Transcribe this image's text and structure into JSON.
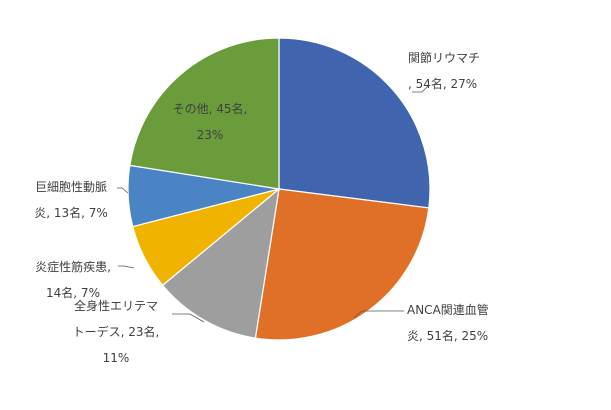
{
  "chart_data": {
    "type": "pie",
    "title": "",
    "categories": [
      "関節リウマチ",
      "ANCA関連血管炎",
      "全身性エリテマトーデス",
      "炎症性筋疾患",
      "巨細胞性動脈炎",
      "その他"
    ],
    "values": [
      54,
      51,
      23,
      14,
      13,
      45
    ],
    "percentages": [
      27,
      25,
      11,
      7,
      7,
      23
    ],
    "colors": [
      "#4064ae",
      "#e07027",
      "#9e9e9e",
      "#f0b400",
      "#4a84c4",
      "#6b9c3c"
    ],
    "data_labels": [
      [
        "関節リウマチ",
        ", 54名, 27%"
      ],
      [
        "ANCA関連血管",
        "炎, 51名, 25%"
      ],
      [
        "全身性エリテマ",
        "トーデス, 23名,",
        "11%"
      ],
      [
        "炎症性筋疾患,",
        "14名, 7%"
      ],
      [
        "巨細胞性動脈",
        "炎, 13名, 7%"
      ],
      [
        "その他, 45名,",
        "23%"
      ]
    ],
    "start_angle_deg": 0,
    "direction": "clockwise",
    "legend": "none"
  }
}
